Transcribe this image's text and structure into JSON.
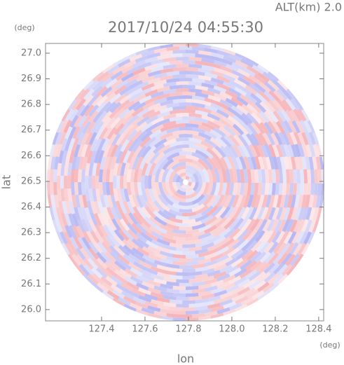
{
  "chart_data": {
    "type": "image",
    "title": "2017/10/24 04:55:30",
    "subtitle": "ALT(km) 2.0",
    "x_label": "lon",
    "y_label": "lat",
    "x_unit": "(deg)",
    "y_unit": "(deg)",
    "xlim": [
      127.142,
      128.423
    ],
    "ylim": [
      25.956,
      27.038
    ],
    "xticks": [
      127.4,
      127.6,
      127.8,
      {
        "value": 128,
        "label": "128.0"
      },
      128.2,
      128.4
    ],
    "yticks": [
      {
        "value": 26,
        "label": "26.0"
      },
      26.1,
      26.2,
      26.3,
      26.4,
      26.5,
      26.6,
      26.7,
      26.8,
      26.9,
      {
        "value": 27,
        "label": "27.0"
      }
    ],
    "colors": [
      "#f5b3b8",
      "#b7b8f3"
    ]
  }
}
